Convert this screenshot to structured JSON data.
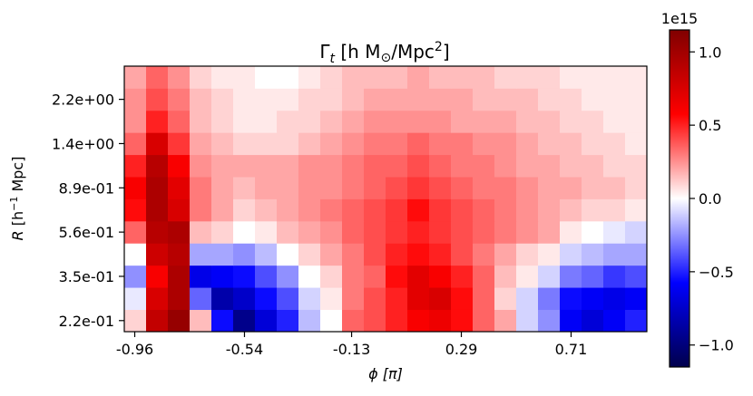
{
  "chart_data": {
    "type": "heatmap",
    "title": "Γ",
    "title_sub": "t",
    "title_rest": " [h M",
    "title_sun": "⊙",
    "title_end": "/Mpc",
    "title_sup": "2",
    "title_close": "]",
    "xlabel": "ϕ [π]",
    "ylabel_italic": "R",
    "ylabel_rest": " [h",
    "ylabel_sup": "−1",
    "ylabel_end": " Mpc]",
    "x_tick_labels": [
      "-0.96",
      "-0.54",
      "-0.13",
      "0.29",
      "0.71"
    ],
    "x_tick_values": [
      -0.96,
      -0.54,
      -0.13,
      0.29,
      0.71
    ],
    "x_range": [
      -1.0,
      1.0
    ],
    "y_tick_labels": [
      "2.2e-01",
      "3.5e-01",
      "5.6e-01",
      "8.9e-01",
      "1.4e+00",
      "2.2e+00"
    ],
    "y_scale": "log",
    "grid": false,
    "colormap": "seismic",
    "color_range": [
      -1150000000000000.0,
      1150000000000000.0
    ],
    "colorbar_multiplier": "1e15",
    "colorbar_tick_labels": [
      "−1.0",
      "−0.5",
      "0.0",
      "0.5",
      "1.0"
    ],
    "colorbar_tick_values": [
      -1.0,
      -0.5,
      0.0,
      0.5,
      1.0
    ],
    "values_note": "rows from smallest R (bottom) to largest R (top); values in units of 1e15",
    "values": [
      [
        0.1,
        0.85,
        1.05,
        0.15,
        -0.55,
        -0.95,
        -0.7,
        -0.5,
        -0.15,
        0.0,
        0.35,
        0.4,
        0.5,
        0.6,
        0.65,
        0.55,
        0.35,
        0.2,
        -0.1,
        -0.25,
        -0.6,
        -0.7,
        -0.6,
        -0.5
      ],
      [
        -0.05,
        0.75,
        0.95,
        -0.35,
        -0.85,
        -0.75,
        -0.55,
        -0.4,
        -0.1,
        0.05,
        0.3,
        0.4,
        0.5,
        0.7,
        0.75,
        0.55,
        0.35,
        0.1,
        -0.1,
        -0.3,
        -0.55,
        -0.6,
        -0.65,
        -0.6
      ],
      [
        -0.25,
        0.6,
        0.95,
        -0.65,
        -0.6,
        -0.55,
        -0.4,
        -0.25,
        0.0,
        0.1,
        0.3,
        0.35,
        0.55,
        0.7,
        0.6,
        0.5,
        0.35,
        0.15,
        0.05,
        -0.1,
        -0.3,
        -0.35,
        -0.45,
        -0.4
      ],
      [
        0.0,
        0.8,
        0.9,
        -0.2,
        -0.2,
        -0.25,
        -0.15,
        0.0,
        0.1,
        0.2,
        0.3,
        0.4,
        0.5,
        0.55,
        0.5,
        0.4,
        0.3,
        0.2,
        0.1,
        0.05,
        -0.1,
        -0.15,
        -0.2,
        -0.2
      ],
      [
        0.35,
        0.9,
        0.95,
        0.15,
        0.1,
        0.0,
        0.05,
        0.15,
        0.2,
        0.25,
        0.35,
        0.4,
        0.45,
        0.5,
        0.45,
        0.4,
        0.35,
        0.3,
        0.25,
        0.2,
        0.05,
        0.0,
        -0.05,
        -0.1
      ],
      [
        0.55,
        0.95,
        0.75,
        0.3,
        0.2,
        0.1,
        0.15,
        0.2,
        0.25,
        0.3,
        0.35,
        0.4,
        0.45,
        0.55,
        0.45,
        0.4,
        0.35,
        0.3,
        0.25,
        0.2,
        0.15,
        0.1,
        0.1,
        0.05
      ],
      [
        0.6,
        0.95,
        0.7,
        0.3,
        0.2,
        0.15,
        0.2,
        0.2,
        0.25,
        0.25,
        0.3,
        0.35,
        0.4,
        0.45,
        0.4,
        0.35,
        0.3,
        0.3,
        0.25,
        0.2,
        0.2,
        0.15,
        0.15,
        0.1
      ],
      [
        0.5,
        0.9,
        0.6,
        0.25,
        0.2,
        0.2,
        0.2,
        0.2,
        0.25,
        0.25,
        0.3,
        0.35,
        0.35,
        0.4,
        0.35,
        0.3,
        0.3,
        0.25,
        0.2,
        0.2,
        0.15,
        0.15,
        0.1,
        0.1
      ],
      [
        0.35,
        0.75,
        0.45,
        0.2,
        0.15,
        0.1,
        0.1,
        0.1,
        0.15,
        0.2,
        0.25,
        0.3,
        0.3,
        0.35,
        0.3,
        0.3,
        0.25,
        0.25,
        0.2,
        0.15,
        0.15,
        0.1,
        0.1,
        0.05
      ],
      [
        0.25,
        0.5,
        0.35,
        0.15,
        0.1,
        0.05,
        0.05,
        0.1,
        0.1,
        0.15,
        0.2,
        0.25,
        0.25,
        0.25,
        0.25,
        0.2,
        0.2,
        0.2,
        0.15,
        0.15,
        0.1,
        0.1,
        0.05,
        0.05
      ],
      [
        0.25,
        0.4,
        0.3,
        0.15,
        0.1,
        0.05,
        0.05,
        0.05,
        0.1,
        0.1,
        0.15,
        0.2,
        0.2,
        0.2,
        0.2,
        0.2,
        0.15,
        0.15,
        0.15,
        0.1,
        0.1,
        0.05,
        0.05,
        0.05
      ],
      [
        0.2,
        0.35,
        0.25,
        0.1,
        0.05,
        0.05,
        0.0,
        0.0,
        0.05,
        0.1,
        0.15,
        0.15,
        0.15,
        0.2,
        0.15,
        0.15,
        0.15,
        0.1,
        0.1,
        0.1,
        0.05,
        0.05,
        0.05,
        0.05
      ]
    ]
  }
}
